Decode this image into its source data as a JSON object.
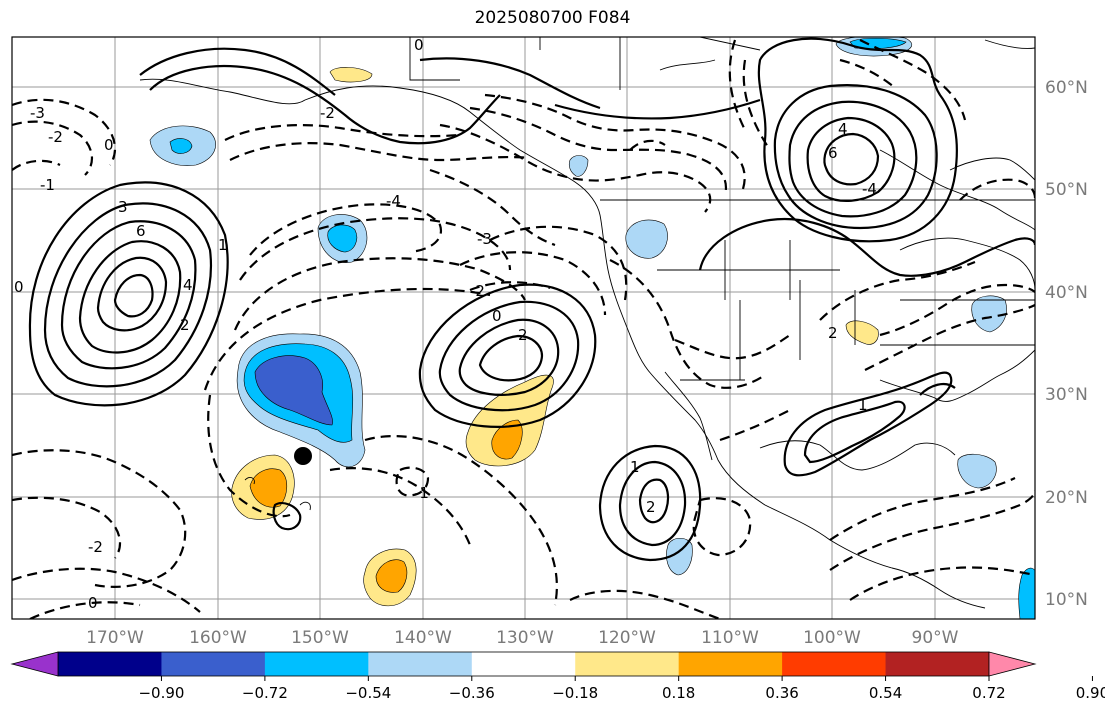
{
  "title": "2025080700 F084",
  "map": {
    "lon_labels": [
      "170°W",
      "160°W",
      "150°W",
      "140°W",
      "130°W",
      "120°W",
      "110°W",
      "100°W",
      "90°W"
    ],
    "lat_labels": [
      "60°N",
      "50°N",
      "40°N",
      "30°N",
      "20°N",
      "10°N"
    ],
    "contour_labels": [
      "-3",
      "-2",
      "-1",
      "0",
      "0",
      "1",
      "2",
      "3",
      "4",
      "6",
      "-4",
      "-3",
      "-2",
      "0",
      "2",
      "-1",
      "1",
      "2",
      "-2",
      "0",
      "1",
      "2",
      "4",
      "6",
      "-4",
      "-2",
      "0"
    ],
    "marker": "black-dot"
  },
  "colorbar": {
    "ticks": [
      "−0.90",
      "−0.72",
      "−0.54",
      "−0.36",
      "−0.18",
      "0.18",
      "0.36",
      "0.54",
      "0.72",
      "0.90"
    ],
    "colors": [
      "#9932cc",
      "#00008b",
      "#3a5fcd",
      "#00bfff",
      "#add8f6",
      "#ffffff",
      "#ffe88a",
      "#ffa500",
      "#ff3c00",
      "#b22222",
      "#ff88aa"
    ]
  }
}
